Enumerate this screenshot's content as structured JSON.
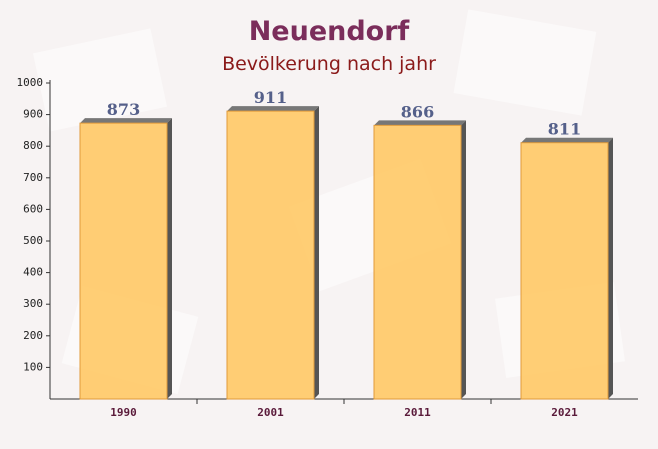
{
  "chart_data": {
    "type": "bar",
    "title": "Neuendorf",
    "subtitle": "Bevölkerung nach jahr",
    "categories": [
      "1990",
      "2001",
      "2011",
      "2021"
    ],
    "values": [
      873,
      911,
      866,
      811
    ],
    "color": "#ffc966",
    "ylim": [
      0,
      1000
    ],
    "yticks": [
      100,
      200,
      300,
      400,
      500,
      600,
      700,
      800,
      900,
      1000
    ]
  }
}
